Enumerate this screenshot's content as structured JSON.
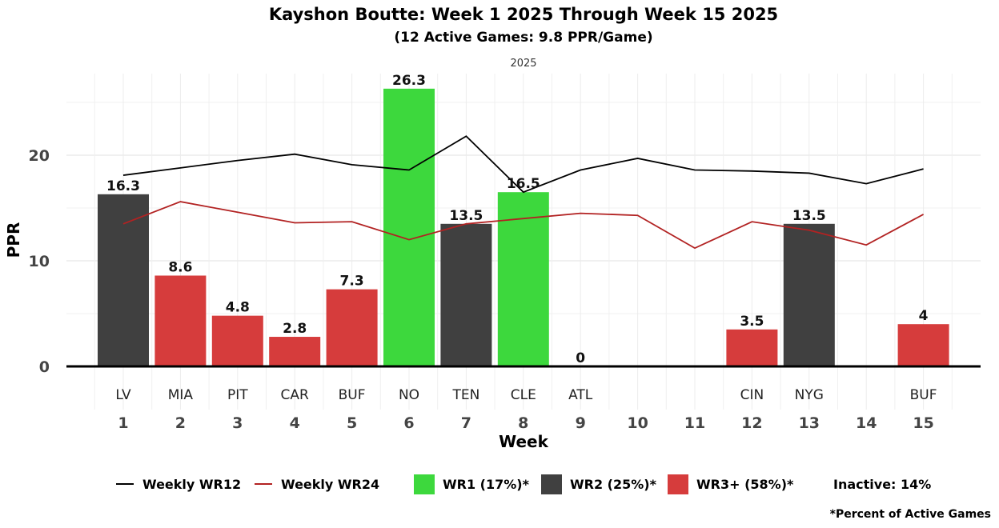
{
  "title": "Kayshon Boutte: Week 1 2025 Through Week 15 2025",
  "subtitle": "(12 Active Games: 9.8 PPR/Game)",
  "facet_label": "2025",
  "footnote": "*Percent of Active Games",
  "chart_data": {
    "type": "bar",
    "xlabel": "Week",
    "ylabel": "PPR",
    "ylim": [
      0,
      28
    ],
    "yticks": [
      0,
      10,
      20
    ],
    "weeks": [
      1,
      2,
      3,
      4,
      5,
      6,
      7,
      8,
      9,
      10,
      11,
      12,
      13,
      14,
      15
    ],
    "opponents": [
      "LV",
      "MIA",
      "PIT",
      "CAR",
      "BUF",
      "NO",
      "TEN",
      "CLE",
      "ATL",
      "",
      "",
      "CIN",
      "NYG",
      "",
      "BUF"
    ],
    "bars": [
      {
        "week": 1,
        "value": 16.3,
        "tier": "WR2",
        "label": "16.3"
      },
      {
        "week": 2,
        "value": 8.6,
        "tier": "WR3+",
        "label": "8.6"
      },
      {
        "week": 3,
        "value": 4.8,
        "tier": "WR3+",
        "label": "4.8"
      },
      {
        "week": 4,
        "value": 2.8,
        "tier": "WR3+",
        "label": "2.8"
      },
      {
        "week": 5,
        "value": 7.3,
        "tier": "WR3+",
        "label": "7.3"
      },
      {
        "week": 6,
        "value": 26.3,
        "tier": "WR1",
        "label": "26.3"
      },
      {
        "week": 7,
        "value": 13.5,
        "tier": "WR2",
        "label": "13.5"
      },
      {
        "week": 8,
        "value": 16.5,
        "tier": "WR1",
        "label": "16.5"
      },
      {
        "week": 9,
        "value": 0,
        "tier": "WR3+",
        "label": "0"
      },
      {
        "week": 12,
        "value": 3.5,
        "tier": "WR3+",
        "label": "3.5"
      },
      {
        "week": 13,
        "value": 13.5,
        "tier": "WR2",
        "label": "13.5"
      },
      {
        "week": 15,
        "value": 4,
        "tier": "WR3+",
        "label": "4"
      }
    ],
    "series": [
      {
        "name": "Weekly WR12",
        "color": "#000000",
        "values": [
          18.1,
          18.8,
          19.5,
          20.1,
          19.1,
          18.6,
          21.8,
          16.5,
          18.6,
          19.7,
          18.6,
          18.5,
          18.3,
          17.3,
          18.7
        ]
      },
      {
        "name": "Weekly WR24",
        "color": "#b22222",
        "values": [
          13.5,
          15.6,
          14.6,
          13.6,
          13.7,
          12.0,
          13.5,
          14.0,
          14.5,
          14.3,
          11.2,
          13.7,
          12.9,
          11.5,
          14.4
        ]
      }
    ],
    "tier_colors": {
      "WR1": "#3dd83d",
      "WR2": "#404040",
      "WR3+": "#d63c3c"
    },
    "legend": {
      "position": "bottom",
      "items": [
        {
          "kind": "line",
          "label": "Weekly WR12",
          "color": "#000000"
        },
        {
          "kind": "line",
          "label": "Weekly WR24",
          "color": "#b22222"
        },
        {
          "kind": "box",
          "label": "WR1 (17%)*",
          "color": "#3dd83d"
        },
        {
          "kind": "box",
          "label": "WR2 (25%)*",
          "color": "#404040"
        },
        {
          "kind": "box",
          "label": "WR3+ (58%)*",
          "color": "#d63c3c"
        },
        {
          "kind": "text",
          "label": "Inactive: 14%"
        }
      ]
    },
    "grid": true
  }
}
